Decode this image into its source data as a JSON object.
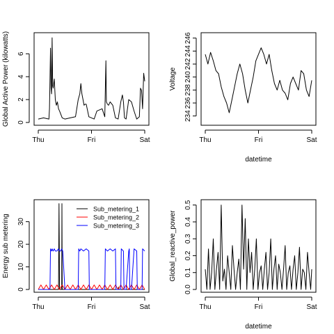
{
  "chart_data": [
    {
      "type": "line",
      "title": "",
      "xlabel": "",
      "ylabel": "Global Active Power (kilowatts)",
      "xticks": [
        {
          "at": 0,
          "label": "Thu"
        },
        {
          "at": 1,
          "label": "Fri"
        },
        {
          "at": 2,
          "label": "Sat"
        }
      ],
      "yticks": [
        0,
        2,
        4,
        6
      ],
      "xlim": [
        0,
        2
      ],
      "ylim": [
        0,
        7.6
      ],
      "series": [
        {
          "color": "#000000",
          "x": [
            0.0,
            0.1,
            0.2,
            0.21,
            0.23,
            0.24,
            0.25,
            0.26,
            0.27,
            0.28,
            0.3,
            0.32,
            0.34,
            0.36,
            0.38,
            0.4,
            0.45,
            0.5,
            0.6,
            0.7,
            0.75,
            0.78,
            0.8,
            0.82,
            0.84,
            0.86,
            0.88,
            0.9,
            0.95,
            1.0,
            1.05,
            1.1,
            1.2,
            1.25,
            1.27,
            1.28,
            1.3,
            1.32,
            1.35,
            1.4,
            1.45,
            1.5,
            1.55,
            1.58,
            1.6,
            1.62,
            1.65,
            1.7,
            1.75,
            1.8,
            1.85,
            1.9,
            1.92,
            1.94,
            1.96,
            1.98,
            2.0
          ],
          "y": [
            0.3,
            0.4,
            0.3,
            1.2,
            6.5,
            3.0,
            2.5,
            7.4,
            3.2,
            3.0,
            3.8,
            2.0,
            1.5,
            1.8,
            1.2,
            1.0,
            0.4,
            0.3,
            0.4,
            0.5,
            2.0,
            2.5,
            3.4,
            2.5,
            2.0,
            1.5,
            1.6,
            1.6,
            0.5,
            0.4,
            0.3,
            1.0,
            1.2,
            0.5,
            5.4,
            1.8,
            1.6,
            1.5,
            1.8,
            1.5,
            0.4,
            0.3,
            1.8,
            2.4,
            1.8,
            0.4,
            0.3,
            2.0,
            1.8,
            1.0,
            0.3,
            0.5,
            3.0,
            2.8,
            1.2,
            4.3,
            3.6
          ]
        }
      ]
    },
    {
      "type": "line",
      "title": "",
      "xlabel": "datetime",
      "ylabel": "Voltage",
      "xticks": [
        {
          "at": 0,
          "label": "Thu"
        },
        {
          "at": 1,
          "label": "Fri"
        },
        {
          "at": 2,
          "label": "Sat"
        }
      ],
      "yticks": [
        234,
        236,
        238,
        240,
        242,
        244,
        246
      ],
      "xlim": [
        0,
        2
      ],
      "ylim": [
        233,
        246.4
      ],
      "series": [
        {
          "color": "#000000",
          "x": [
            0.0,
            0.05,
            0.1,
            0.15,
            0.2,
            0.25,
            0.3,
            0.35,
            0.4,
            0.45,
            0.5,
            0.55,
            0.6,
            0.65,
            0.7,
            0.75,
            0.8,
            0.85,
            0.9,
            0.95,
            1.0,
            1.05,
            1.1,
            1.15,
            1.2,
            1.25,
            1.3,
            1.35,
            1.4,
            1.45,
            1.5,
            1.55,
            1.6,
            1.65,
            1.7,
            1.75,
            1.8,
            1.85,
            1.9,
            1.95,
            2.0
          ],
          "y": [
            243.5,
            242.0,
            243.8,
            242.5,
            241.0,
            240.5,
            238.5,
            237.0,
            236.0,
            234.5,
            236.5,
            238.5,
            240.5,
            242.0,
            240.5,
            238.0,
            236.0,
            238.0,
            240.0,
            242.5,
            243.5,
            244.5,
            243.5,
            242.0,
            243.5,
            241.0,
            239.0,
            238.0,
            239.5,
            238.0,
            237.5,
            236.5,
            239.0,
            240.0,
            239.0,
            238.0,
            241.0,
            240.5,
            238.0,
            237.0,
            239.5
          ]
        }
      ]
    },
    {
      "type": "line",
      "title": "",
      "xlabel": "",
      "ylabel": "Energy sub metering",
      "xticks": [
        {
          "at": 0,
          "label": "Thu"
        },
        {
          "at": 1,
          "label": "Fri"
        },
        {
          "at": 2,
          "label": "Sat"
        }
      ],
      "yticks": [
        0,
        10,
        20,
        30
      ],
      "xlim": [
        0,
        2
      ],
      "ylim": [
        0,
        38.5
      ],
      "legend_position": "top-right",
      "series": [
        {
          "name": "Sub_metering_1",
          "color": "#000000",
          "x": [
            0.0,
            0.38,
            0.385,
            0.39,
            0.4,
            0.41,
            0.42,
            0.44,
            0.445,
            0.45,
            0.46,
            1.5,
            1.51,
            1.52,
            2.0
          ],
          "y": [
            0,
            0,
            20,
            38,
            0,
            0,
            0,
            0,
            38,
            0,
            0,
            0,
            1,
            0,
            0
          ]
        },
        {
          "name": "Sub_metering_2",
          "color": "#ff0000",
          "x": [
            0.0,
            0.05,
            0.1,
            0.15,
            0.2,
            0.25,
            0.3,
            0.35,
            0.4,
            0.45,
            0.5,
            0.55,
            0.6,
            0.65,
            0.7,
            0.75,
            0.8,
            0.85,
            0.9,
            0.95,
            1.0,
            1.05,
            1.1,
            1.15,
            1.2,
            1.25,
            1.3,
            1.35,
            1.4,
            1.45,
            1.5,
            1.55,
            1.6,
            1.65,
            1.7,
            1.75,
            1.8,
            1.85,
            1.9,
            1.95,
            2.0
          ],
          "y": [
            0,
            2,
            0,
            2,
            0,
            2,
            0,
            2,
            0,
            2,
            0,
            2,
            0,
            2,
            0,
            2,
            0,
            2,
            0,
            2,
            0,
            2,
            0,
            2,
            0,
            2,
            0,
            2,
            0,
            2,
            0,
            2,
            0,
            2,
            0,
            2,
            0,
            2,
            0,
            2,
            0
          ]
        },
        {
          "name": "Sub_metering_3",
          "color": "#0000ff",
          "x": [
            0.0,
            0.22,
            0.23,
            0.25,
            0.26,
            0.28,
            0.3,
            0.32,
            0.35,
            0.38,
            0.4,
            0.42,
            0.44,
            0.46,
            0.5,
            0.6,
            0.7,
            0.75,
            0.76,
            0.78,
            0.8,
            0.85,
            0.9,
            0.95,
            0.96,
            1.0,
            1.2,
            1.25,
            1.26,
            1.3,
            1.35,
            1.4,
            1.45,
            1.46,
            1.5,
            1.55,
            1.56,
            1.6,
            1.61,
            1.65,
            1.7,
            1.71,
            1.72,
            1.75,
            1.8,
            1.85,
            1.86,
            1.9,
            1.95,
            1.96,
            2.0
          ],
          "y": [
            0,
            0,
            18,
            17,
            18,
            17,
            18,
            17,
            17,
            18,
            17,
            17,
            18,
            17,
            0,
            0,
            0,
            0,
            18,
            17,
            18,
            17,
            18,
            17,
            0,
            0,
            0,
            0,
            18,
            17,
            18,
            17,
            18,
            0,
            0,
            0,
            18,
            17,
            0,
            0,
            17,
            18,
            0,
            0,
            18,
            17,
            0,
            0,
            0,
            18,
            17
          ]
        }
      ]
    },
    {
      "type": "line",
      "title": "",
      "xlabel": "datetime",
      "ylabel": "Global_reactive_power",
      "xticks": [
        {
          "at": 0,
          "label": "Thu"
        },
        {
          "at": 1,
          "label": "Fri"
        },
        {
          "at": 2,
          "label": "Sat"
        }
      ],
      "yticks": [
        {
          "at": 0.0,
          "label": "0.0"
        },
        {
          "at": 0.1,
          "label": "0.1"
        },
        {
          "at": 0.2,
          "label": "0.2"
        },
        {
          "at": 0.3,
          "label": "0.3"
        },
        {
          "at": 0.4,
          "label": "0.4"
        },
        {
          "at": 0.5,
          "label": "0.5"
        }
      ],
      "xlim": [
        0,
        2
      ],
      "ylim": [
        0,
        0.515
      ],
      "series": [
        {
          "color": "#000000",
          "x": [
            0.0,
            0.03,
            0.06,
            0.09,
            0.12,
            0.15,
            0.18,
            0.21,
            0.24,
            0.27,
            0.3,
            0.33,
            0.36,
            0.39,
            0.42,
            0.45,
            0.48,
            0.51,
            0.54,
            0.57,
            0.6,
            0.63,
            0.66,
            0.69,
            0.72,
            0.75,
            0.78,
            0.81,
            0.84,
            0.87,
            0.9,
            0.93,
            0.96,
            0.99,
            1.02,
            1.05,
            1.08,
            1.11,
            1.14,
            1.17,
            1.2,
            1.23,
            1.26,
            1.29,
            1.32,
            1.35,
            1.38,
            1.41,
            1.44,
            1.47,
            1.5,
            1.53,
            1.56,
            1.59,
            1.62,
            1.65,
            1.68,
            1.71,
            1.74,
            1.77,
            1.8,
            1.83,
            1.86,
            1.89,
            1.92,
            1.95,
            1.98,
            2.0
          ],
          "y": [
            0.12,
            0.0,
            0.24,
            0.0,
            0.1,
            0.3,
            0.0,
            0.12,
            0.22,
            0.0,
            0.5,
            0.05,
            0.12,
            0.0,
            0.2,
            0.1,
            0.0,
            0.26,
            0.12,
            0.0,
            0.1,
            0.18,
            0.0,
            0.5,
            0.12,
            0.42,
            0.0,
            0.3,
            0.1,
            0.22,
            0.0,
            0.12,
            0.3,
            0.0,
            0.1,
            0.14,
            0.0,
            0.12,
            0.22,
            0.0,
            0.1,
            0.3,
            0.0,
            0.12,
            0.2,
            0.0,
            0.15,
            0.1,
            0.0,
            0.12,
            0.26,
            0.0,
            0.1,
            0.14,
            0.0,
            0.12,
            0.2,
            0.0,
            0.1,
            0.25,
            0.0,
            0.12,
            0.1,
            0.0,
            0.22,
            0.1,
            0.0,
            0.12
          ]
        }
      ]
    }
  ]
}
